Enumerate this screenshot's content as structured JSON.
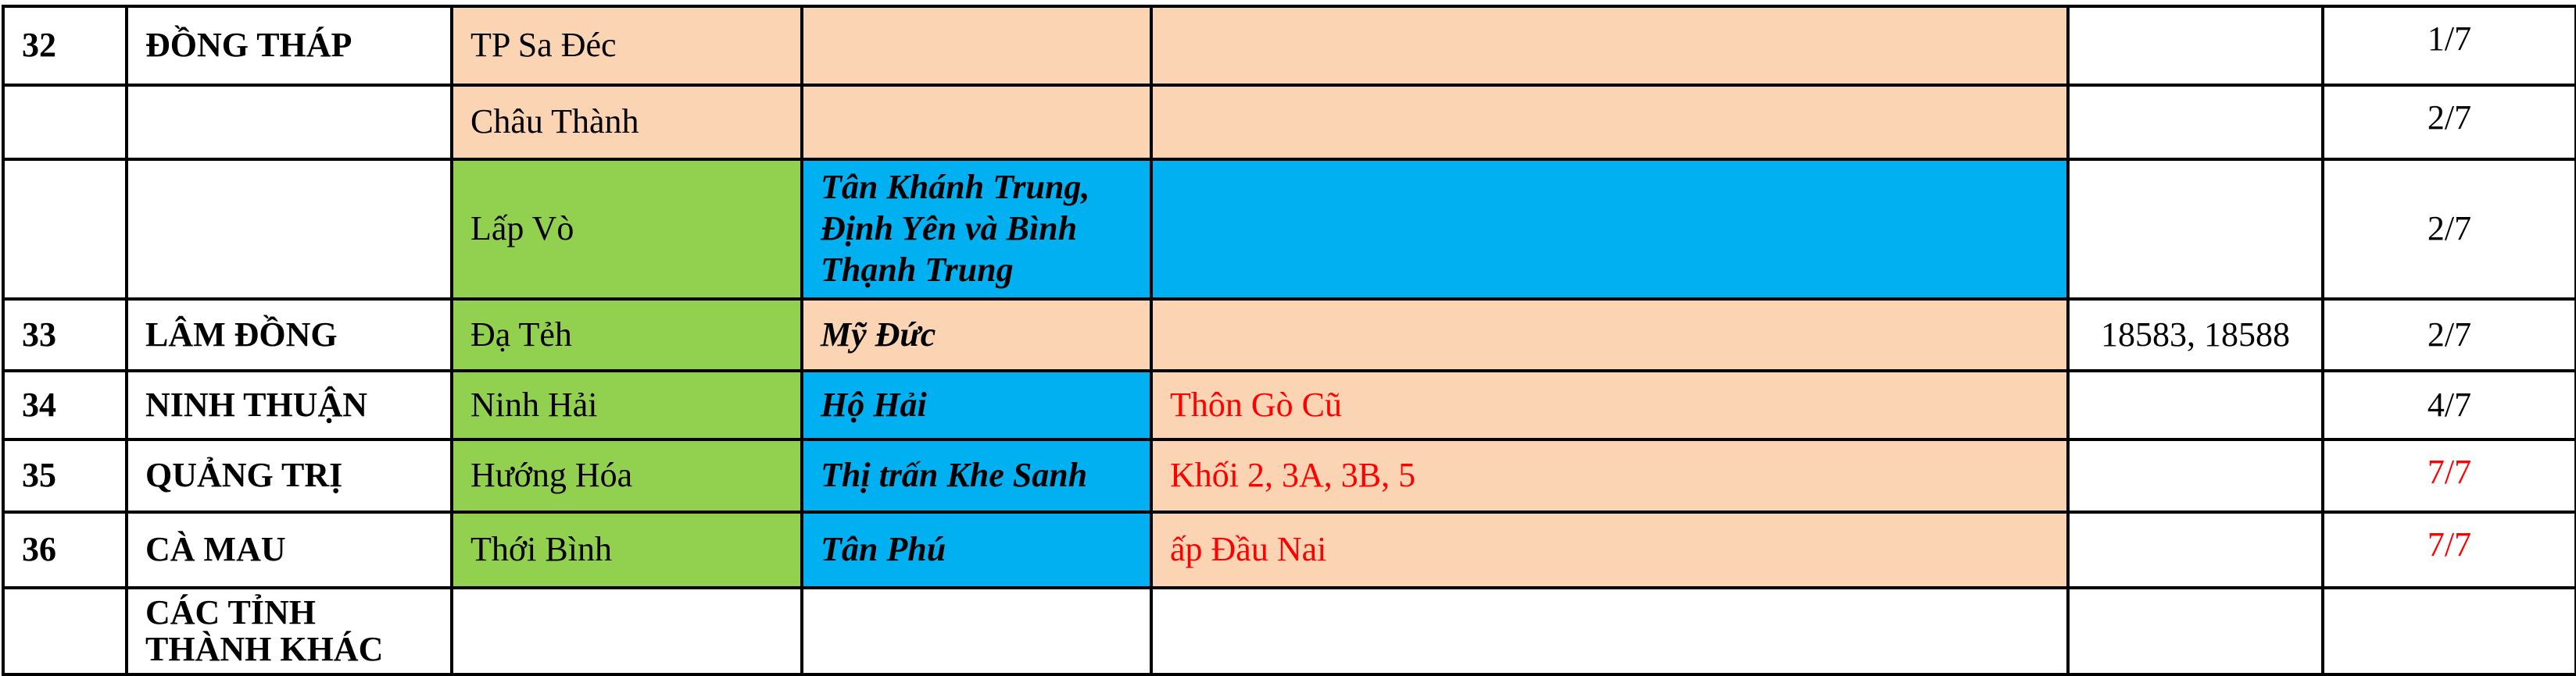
{
  "colors": {
    "peach": "#FBD4B4",
    "green": "#92D050",
    "blue": "#00B0F0",
    "white": "#FFFFFF",
    "red_text": "#FF0000"
  },
  "rows": [
    {
      "stt": "32",
      "province": "ĐỒNG THÁP",
      "district": "TP Sa Đéc",
      "commune": "",
      "area": "",
      "codes": "",
      "date": "1/7",
      "fills": [
        "peach",
        "peach",
        "peach"
      ],
      "date_red": false,
      "date_top": true
    },
    {
      "stt": "",
      "province": "",
      "district": "Châu Thành",
      "commune": "",
      "area": "",
      "codes": "",
      "date": "2/7",
      "fills": [
        "peach",
        "peach",
        "peach"
      ],
      "date_red": false,
      "date_top": true
    },
    {
      "stt": "",
      "province": "",
      "district": "Lấp Vò",
      "commune": "Tân Khánh Trung, Định Yên và Bình Thạnh Trung",
      "area": "",
      "codes": "",
      "date": "2/7",
      "fills": [
        "green",
        "blue",
        "blue"
      ],
      "date_red": false,
      "date_top": false
    },
    {
      "stt": "33",
      "province": "LÂM ĐỒNG",
      "district": "Đạ Tẻh",
      "commune": "Mỹ Đức",
      "area": "",
      "codes": "18583, 18588",
      "date": "2/7",
      "fills": [
        "green",
        "peach",
        "peach"
      ],
      "date_red": false,
      "date_top": false
    },
    {
      "stt": "34",
      "province": "NINH THUẬN",
      "district": "Ninh Hải",
      "commune": "Hộ Hải",
      "area": "Thôn Gò Cũ",
      "codes": "",
      "date": "4/7",
      "fills": [
        "green",
        "blue",
        "peach"
      ],
      "date_red": false,
      "date_top": false
    },
    {
      "stt": "35",
      "province": "QUẢNG TRỊ",
      "district": "Hướng Hóa",
      "commune": "Thị trấn Khe Sanh",
      "area": "Khối 2, 3A, 3B, 5",
      "codes": "",
      "date": "7/7",
      "fills": [
        "green",
        "blue",
        "peach"
      ],
      "date_red": true,
      "date_top": true
    },
    {
      "stt": "36",
      "province": "CÀ MAU",
      "district": "Thới Bình",
      "commune": "Tân Phú",
      "area": "ấp Đầu Nai",
      "codes": "",
      "date": "7/7",
      "fills": [
        "green",
        "blue",
        "peach"
      ],
      "date_red": true,
      "date_top": true
    },
    {
      "stt": "",
      "province": "CÁC TỈNH THÀNH KHÁC",
      "district": "",
      "commune": "",
      "area": "",
      "codes": "",
      "date": "",
      "fills": [
        "white",
        "white",
        "white"
      ],
      "date_red": false,
      "date_top": false
    }
  ]
}
